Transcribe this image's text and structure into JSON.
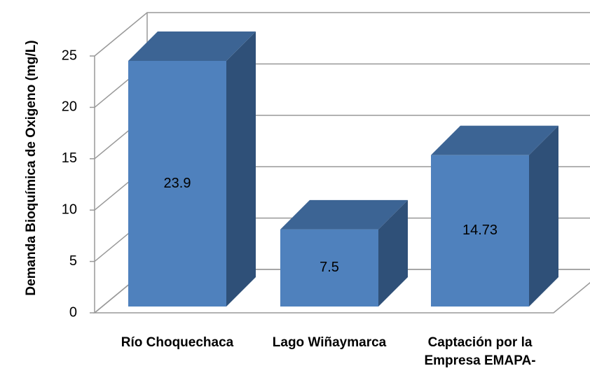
{
  "chart_data": {
    "type": "bar3d",
    "y_label": "Demanda Bioquímica de Oxigeno (mg/L)",
    "categories": [
      "Río Choquechaca",
      "Lago Wiñaymarca",
      "Captación por la Empresa EMAPA-"
    ],
    "values": [
      23.9,
      7.5,
      14.73
    ],
    "color": "#4f81bd",
    "ylim": [
      0,
      25
    ],
    "yticks": [
      0,
      5,
      10,
      15,
      20,
      25
    ],
    "grid": true
  }
}
